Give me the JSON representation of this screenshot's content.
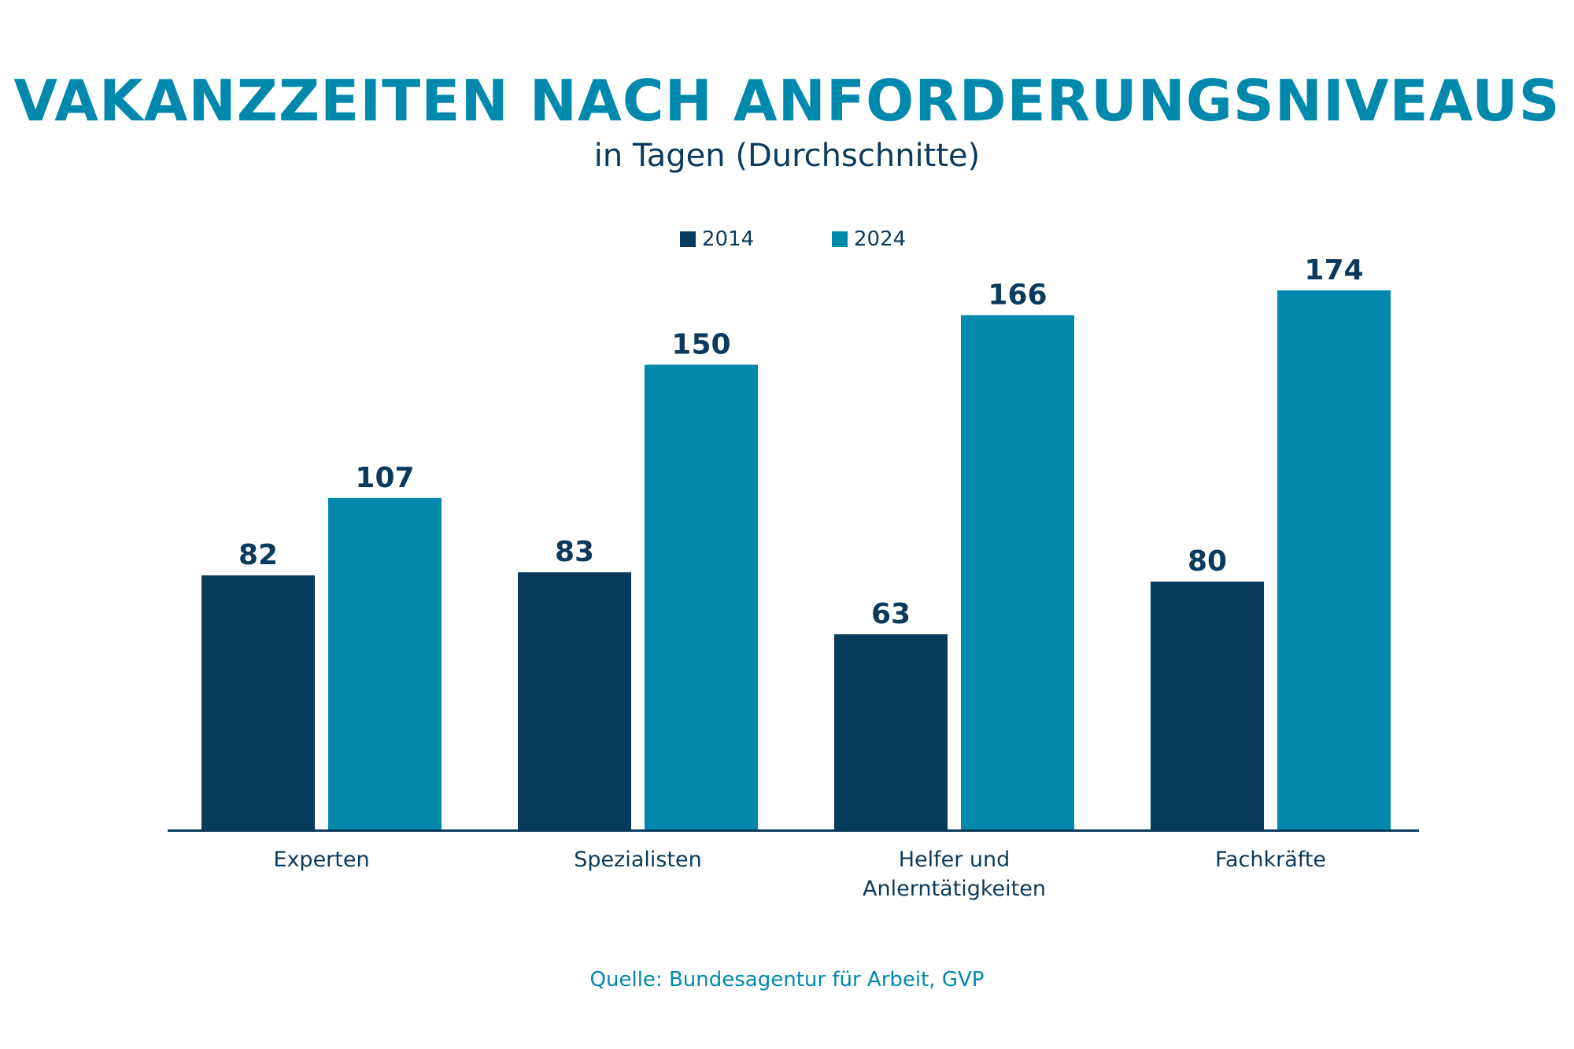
{
  "title": "VAKANZZEITEN NACH ANFORDERUNGSNIVEAUS",
  "subtitle": "in Tagen (Durchschnitte)",
  "source": "Quelle: Bundesagentur für Arbeit, GVP",
  "colors": {
    "series_2014": "#073b5c",
    "series_2024": "#0089ad",
    "axis": "#0c3a5c",
    "title": "#0089ad",
    "text": "#0c3a5c"
  },
  "chart_data": {
    "type": "bar",
    "title": "VAKANZZEITEN NACH ANFORDERUNGSNIVEAUS",
    "subtitle": "in Tagen (Durchschnitte)",
    "categories": [
      [
        "Experten"
      ],
      [
        "Spezialisten"
      ],
      [
        "Helfer und",
        "Anlerntätigkeiten"
      ],
      [
        "Fachkräfte"
      ]
    ],
    "series": [
      {
        "name": "2014",
        "values": [
          82,
          83,
          63,
          80
        ]
      },
      {
        "name": "2024",
        "values": [
          107,
          150,
          166,
          174
        ]
      }
    ],
    "xlabel": "",
    "ylabel": "",
    "ylim": [
      0,
      174
    ],
    "grid": false,
    "legend": "top-center",
    "data_labels": true
  }
}
